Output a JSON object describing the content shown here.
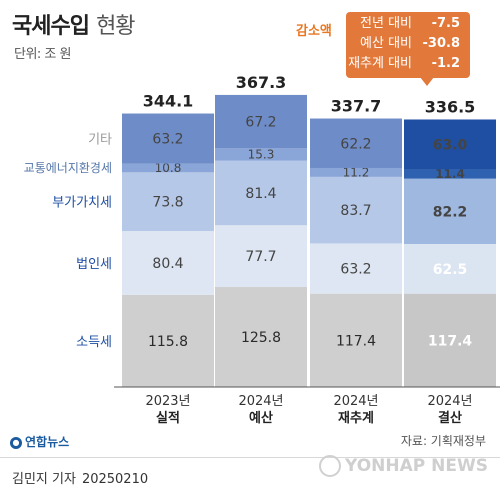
{
  "header": {
    "title_main": "국세수입",
    "title_sub": "현황",
    "unit": "단위: 조 원"
  },
  "callout": {
    "heading": "감소액",
    "rows": [
      {
        "label": "전년 대비",
        "value": "-7.5"
      },
      {
        "label": "예산 대비",
        "value": "-30.8"
      },
      {
        "label": "재추계 대비",
        "value": "-1.2"
      }
    ]
  },
  "footer": {
    "logo": "연합뉴스",
    "source": "자료: 기획재정부",
    "byline": "김민지 기자",
    "date": "20250210",
    "watermark": "YONHAP NEWS"
  },
  "colors": {
    "accent": "#e2783a",
    "highlight_bars": [
      "#c7c7c7",
      "#dbe4f1",
      "#9fb8e0",
      "#2e62b0",
      "#1f4fa3"
    ],
    "normal_bars": [
      "#cfcfcf",
      "#dde6f2",
      "#b6c8e7",
      "#8aa6d8",
      "#6e8cc8"
    ]
  },
  "chart_data": {
    "type": "bar",
    "stacked": true,
    "categories": [
      "2023년 실적",
      "2024년 예산",
      "2024년 재추계",
      "2024년 결산"
    ],
    "category_years": [
      "2023년",
      "2024년",
      "2024년",
      "2024년"
    ],
    "category_types": [
      "실적",
      "예산",
      "재추계",
      "결산"
    ],
    "totals": [
      "344.1",
      "367.3",
      "337.7",
      "336.5"
    ],
    "series": [
      {
        "name": "소득세",
        "values": [
          115.8,
          125.8,
          117.4,
          117.4
        ]
      },
      {
        "name": "법인세",
        "values": [
          80.4,
          77.7,
          63.2,
          62.5
        ]
      },
      {
        "name": "부가가치세",
        "values": [
          73.8,
          81.4,
          83.7,
          82.2
        ]
      },
      {
        "name": "교통에너지환경세",
        "values": [
          10.8,
          15.3,
          11.2,
          11.4
        ]
      },
      {
        "name": "기타",
        "values": [
          63.2,
          67.2,
          62.2,
          63.0
        ]
      }
    ],
    "highlight_index": 3,
    "ylim": [
      0,
      367.3
    ]
  }
}
